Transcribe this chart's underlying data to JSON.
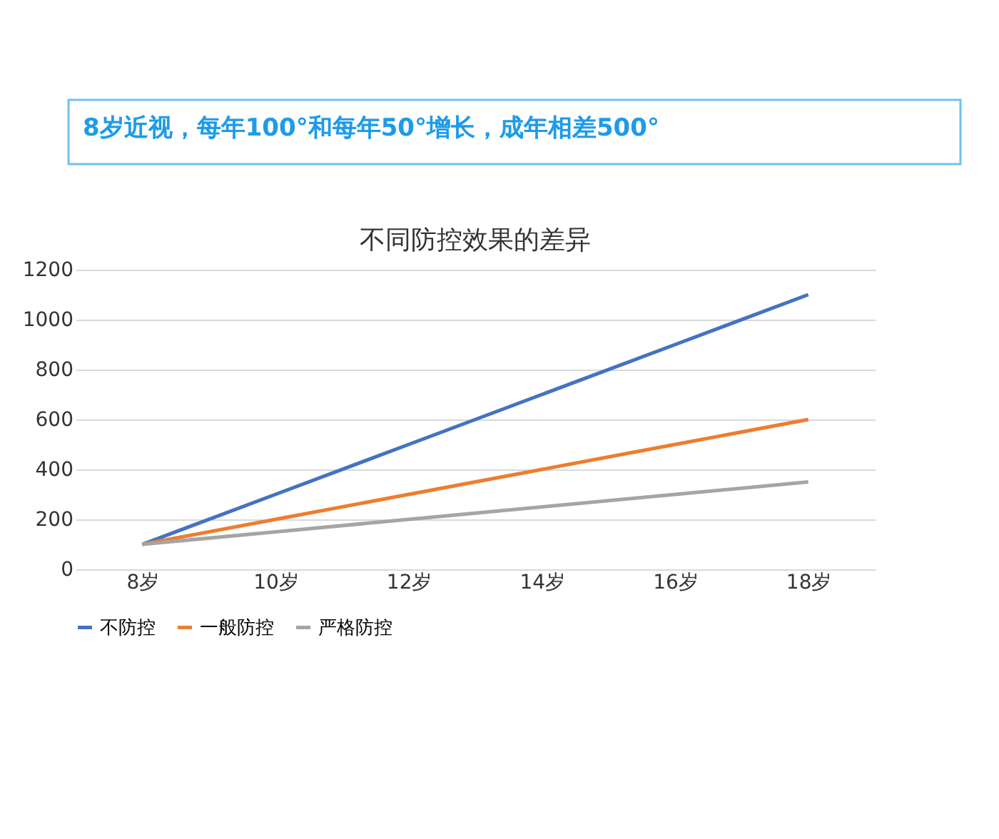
{
  "chart_data": {
    "type": "line",
    "title": "不同防控效果的差异",
    "annotations": [
      "8岁近视，每年100°和每年50°增长，成年相差500°"
    ],
    "categories": [
      "8岁",
      "10岁",
      "12岁",
      "14岁",
      "16岁",
      "18岁"
    ],
    "series": [
      {
        "name": "不防控",
        "color": "#4472c4",
        "values": [
          100,
          300,
          500,
          700,
          900,
          1100
        ]
      },
      {
        "name": "一般防控",
        "color": "#ed7d31",
        "values": [
          100,
          200,
          300,
          400,
          500,
          600
        ]
      },
      {
        "name": "严格防控",
        "color": "#a5a5a5",
        "values": [
          100,
          150,
          200,
          250,
          300,
          350
        ]
      }
    ],
    "ylim": [
      0,
      1200
    ],
    "yticks": [
      0,
      200,
      400,
      600,
      800,
      1000,
      1200
    ],
    "grid": "y",
    "legend": "bottom",
    "marker": "none",
    "line_style": "solid"
  }
}
